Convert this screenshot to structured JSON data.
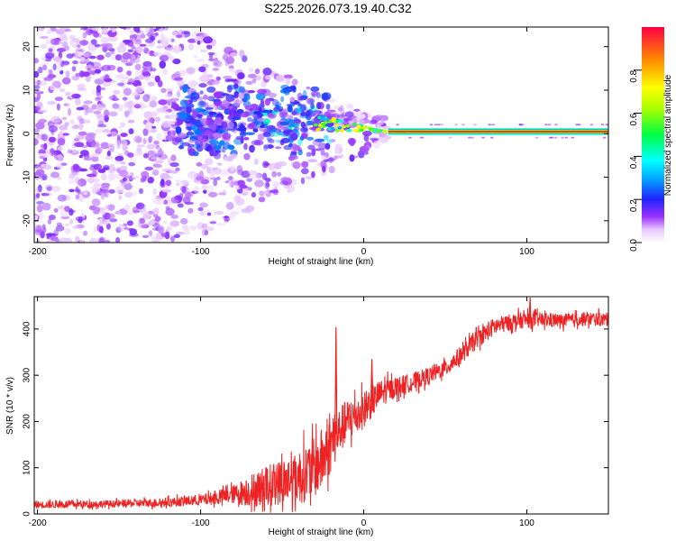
{
  "page": {
    "title": "S225.2026.073.19.40.C32"
  },
  "chart_data": [
    {
      "type": "heatmap",
      "title": "S225.2026.073.19.40.C32",
      "xlabel": "Height of straight line (km)",
      "ylabel": "Frequency (Hz)",
      "xlim": [
        -202,
        150
      ],
      "ylim": [
        -25,
        24.5
      ],
      "xticks": [
        -200,
        -100,
        0,
        100
      ],
      "yticks": [
        -20,
        -10,
        0,
        10,
        20
      ],
      "grid": false,
      "colorbar": {
        "label": "Normalized spectral amplitude",
        "range": [
          0,
          1
        ],
        "ticks": [
          "0.0",
          "0.2",
          "0.4",
          "0.6",
          "0.8"
        ],
        "tick_values": [
          0.0,
          0.2,
          0.4,
          0.6,
          0.8
        ],
        "colormap": "rainbow"
      },
      "features": {
        "noise_region_x": [
          -202,
          -20
        ],
        "signal_line_frequency_hz": 0.5,
        "signal_line_x": [
          15,
          150
        ],
        "signal_line_amplitude": 0.95,
        "transition_x": [
          -110,
          15
        ]
      }
    },
    {
      "type": "line",
      "xlabel": "Height of straight line (km)",
      "ylabel": "SNR (10 * v/v)",
      "xlim": [
        -202,
        150
      ],
      "ylim": [
        0,
        470
      ],
      "xticks": [
        -200,
        -100,
        0,
        100
      ],
      "yticks": [
        0,
        100,
        200,
        300,
        400
      ],
      "grid": false,
      "series": [
        {
          "name": "SNR",
          "color": "#ee2222",
          "x": [
            -200,
            -150,
            -120,
            -100,
            -90,
            -80,
            -70,
            -60,
            -50,
            -40,
            -30,
            -25,
            -20,
            -15,
            -10,
            0,
            10,
            20,
            30,
            40,
            50,
            60,
            70,
            80,
            90,
            100,
            110,
            120,
            130,
            140,
            150
          ],
          "y": [
            20,
            22,
            25,
            30,
            35,
            42,
            50,
            60,
            70,
            80,
            100,
            120,
            150,
            180,
            200,
            225,
            260,
            275,
            285,
            300,
            315,
            345,
            380,
            405,
            415,
            420,
            420,
            418,
            420,
            422,
            420
          ],
          "noise_amplitude": [
            8,
            8,
            10,
            12,
            15,
            20,
            35,
            45,
            50,
            60,
            65,
            70,
            60,
            50,
            50,
            40,
            30,
            22,
            20,
            18,
            18,
            20,
            20,
            20,
            18,
            18,
            16,
            15,
            15,
            15,
            15
          ]
        }
      ],
      "spikes": [
        {
          "x": -17,
          "y": 404
        },
        {
          "x": 5,
          "y": 335
        },
        {
          "x": 102,
          "y": 468
        }
      ]
    }
  ]
}
